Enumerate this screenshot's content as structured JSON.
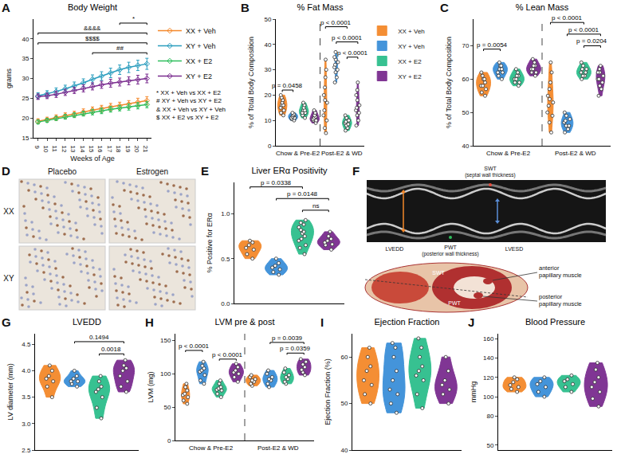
{
  "chart_data": [
    {
      "panel": "A",
      "type": "line",
      "title": "Body Weight",
      "x_label": "Weeks of Age",
      "y_label": "grams",
      "x": [
        9,
        10,
        11,
        12,
        13,
        14,
        15,
        16,
        17,
        18,
        19,
        20,
        21
      ],
      "xlim": [
        8.5,
        21.5
      ],
      "xticks": [
        9,
        10,
        11,
        12,
        13,
        14,
        15,
        16,
        17,
        18,
        19,
        20,
        21
      ],
      "ylim": [
        15,
        45
      ],
      "yticks": [
        15,
        20,
        25,
        30,
        35,
        40
      ],
      "marker": "diamond-open",
      "grid": false,
      "legend": "right",
      "series": [
        {
          "name": "XX + Veh",
          "color": "#F4882A",
          "values": [
            19.2,
            19.6,
            20.1,
            20.6,
            21.0,
            21.5,
            22.0,
            22.4,
            22.8,
            23.1,
            23.5,
            24.0,
            24.4
          ],
          "errors": [
            0.6,
            0.6,
            0.7,
            0.7,
            0.7,
            0.8,
            0.8,
            0.8,
            0.9,
            0.9,
            0.9,
            1.0,
            1.0
          ]
        },
        {
          "name": "XY + Veh",
          "color": "#2A9DBE",
          "values": [
            25.6,
            26.1,
            26.7,
            27.4,
            28.1,
            28.9,
            29.8,
            30.6,
            31.4,
            32.2,
            32.8,
            33.3,
            33.7
          ],
          "errors": [
            0.8,
            0.8,
            0.9,
            0.9,
            1.0,
            1.0,
            1.1,
            1.1,
            1.2,
            1.2,
            1.3,
            1.3,
            1.4
          ]
        },
        {
          "name": "XX + E2",
          "color": "#2DBE5C",
          "values": [
            19.0,
            19.4,
            19.9,
            20.3,
            20.7,
            21.1,
            21.5,
            21.8,
            22.2,
            22.5,
            22.8,
            23.1,
            23.4
          ],
          "errors": [
            0.5,
            0.5,
            0.5,
            0.6,
            0.6,
            0.6,
            0.7,
            0.7,
            0.7,
            0.7,
            0.8,
            0.8,
            0.8
          ]
        },
        {
          "name": "XY + E2",
          "color": "#7A2C8F",
          "values": [
            25.4,
            25.6,
            26.0,
            26.5,
            27.0,
            27.5,
            28.0,
            28.4,
            28.8,
            29.1,
            29.4,
            29.7,
            30.0
          ],
          "errors": [
            0.7,
            0.7,
            0.8,
            0.8,
            0.8,
            0.9,
            0.9,
            0.9,
            1.0,
            1.0,
            1.0,
            1.1,
            1.1
          ]
        }
      ],
      "brackets": [
        {
          "from": 18,
          "to": 21,
          "y": 44,
          "text": "*"
        },
        {
          "from": 9,
          "to": 21,
          "y": 41.5,
          "text": "&&&&"
        },
        {
          "from": 9,
          "to": 21,
          "y": 39,
          "text": "$$$$"
        },
        {
          "from": 15,
          "to": 21,
          "y": 36.5,
          "text": "##"
        }
      ],
      "notes": [
        "* XX + Veh vs XX + E2",
        "# XY + Veh vs XY + E2",
        "& XX + Veh vs XY + Veh",
        "$ XX + E2 vs XY + E2"
      ]
    },
    {
      "panel": "B",
      "type": "violin",
      "title": "% Fat Mass",
      "y_label": "% of Total Body Composition",
      "groups": [
        "Chow & Pre-E2",
        "Post-E2 & WD"
      ],
      "ylim": [
        0,
        50
      ],
      "yticks": [
        0,
        10,
        20,
        30,
        40,
        50
      ],
      "grid": false,
      "tick_labels": "y",
      "legend": "right",
      "series": [
        {
          "name": "XX + Veh",
          "color": "#F4882A",
          "values": [
            [
              12,
              14,
              15,
              16,
              17,
              18,
              19,
              20,
              16,
              13
            ],
            [
              5,
              7,
              10,
              14,
              17,
              20,
              23,
              27,
              30,
              34,
              18,
              12
            ]
          ]
        },
        {
          "name": "XY + Veh",
          "color": "#3A8FD9",
          "values": [
            [
              10,
              11,
              11.5,
              12,
              12.5,
              13,
              11,
              10.5,
              12
            ],
            [
              25,
              27,
              29,
              30,
              31,
              32,
              33,
              34,
              35,
              37
            ]
          ]
        },
        {
          "name": "XX + E2",
          "color": "#2DBE8C",
          "values": [
            [
              11,
              12,
              13,
              14,
              15,
              16,
              17,
              14,
              13
            ],
            [
              6,
              7,
              8,
              8.5,
              9,
              9.5,
              10,
              11,
              12
            ]
          ]
        },
        {
          "name": "XY + E2",
          "color": "#7A2C8F",
          "values": [
            [
              9,
              10,
              10.5,
              11,
              11.5,
              12,
              13,
              14,
              10
            ],
            [
              8,
              10,
              12,
              13,
              14,
              15,
              16,
              18,
              20,
              22,
              25
            ]
          ]
        }
      ],
      "brackets": [
        {
          "from": 0,
          "to": 1,
          "y": 22,
          "text": "p = 0.0458"
        },
        {
          "from": 4,
          "to": 6,
          "y": 47,
          "text": "p < 0.0001"
        },
        {
          "from": 5,
          "to": 7,
          "y": 41,
          "text": "p < 0.0001"
        },
        {
          "from": 6,
          "to": 7,
          "y": 35,
          "text": "p < 0.0001"
        }
      ]
    },
    {
      "panel": "C",
      "type": "violin",
      "title": "% Lean Mass",
      "y_label": "% of Total Body Composition",
      "groups": [
        "Chow & Pre-E2",
        "Post-E2 & WD"
      ],
      "ylim": [
        40,
        78
      ],
      "yticks": [
        40,
        50,
        60,
        70
      ],
      "grid": false,
      "tick_labels": "y",
      "series": [
        {
          "name": "XX + Veh",
          "color": "#F4882A",
          "values": [
            [
              55,
              57,
              58,
              59,
              60,
              61,
              62,
              58,
              56,
              60
            ],
            [
              44,
              47,
              50,
              52,
              54,
              55,
              57,
              59,
              62,
              65,
              53,
              49
            ]
          ]
        },
        {
          "name": "XY + Veh",
          "color": "#3A8FD9",
          "values": [
            [
              60,
              61,
              62,
              63,
              64,
              65,
              63,
              62,
              64
            ],
            [
              44,
              45,
              46,
              47,
              47.5,
              48,
              49,
              50,
              46
            ]
          ]
        },
        {
          "name": "XX + E2",
          "color": "#2DBE8C",
          "values": [
            [
              58,
              59,
              60,
              61,
              62,
              63,
              60,
              59,
              61
            ],
            [
              60,
              61,
              62,
              63,
              64,
              65,
              62,
              63,
              61
            ]
          ]
        },
        {
          "name": "XY + E2",
          "color": "#7A2C8F",
          "values": [
            [
              61,
              62,
              63,
              64,
              65,
              63,
              62,
              64,
              66
            ],
            [
              55,
              57,
              58,
              60,
              61,
              62,
              63,
              64,
              59,
              60,
              62
            ]
          ]
        }
      ],
      "brackets": [
        {
          "from": 0,
          "to": 1,
          "y": 69,
          "text": "p = 0.0054"
        },
        {
          "from": 4,
          "to": 6,
          "y": 77,
          "text": "p < 0.0001"
        },
        {
          "from": 5,
          "to": 7,
          "y": 73.5,
          "text": "p < 0.0001"
        },
        {
          "from": 6,
          "to": 7,
          "y": 70,
          "text": "p = 0.0204"
        }
      ]
    },
    {
      "panel": "E",
      "type": "violin",
      "title": "Liver ERα Positivity",
      "y_label": "% Positive for ERα",
      "ylim": [
        0,
        1.35
      ],
      "yticks": [
        {
          "value": 0,
          "label": "0.0"
        },
        0.5,
        {
          "value": 1,
          "label": "1.0"
        }
      ],
      "grid": false,
      "tick_labels": "y",
      "series": [
        {
          "name": "XX + Veh",
          "color": "#F4882A",
          "values": [
            [
              0.5,
              0.55,
              0.6,
              0.62,
              0.65,
              0.68,
              0.7
            ]
          ]
        },
        {
          "name": "XY + Veh",
          "color": "#3A8FD9",
          "values": [
            [
              0.32,
              0.35,
              0.38,
              0.4,
              0.42,
              0.45,
              0.5
            ]
          ]
        },
        {
          "name": "XX + E2",
          "color": "#2DBE8C",
          "values": [
            [
              0.55,
              0.62,
              0.7,
              0.75,
              0.8,
              0.82,
              0.85,
              0.88,
              0.9,
              0.93,
              0.78,
              0.72,
              0.65
            ]
          ]
        },
        {
          "name": "XY + E2",
          "color": "#7A2C8F",
          "values": [
            [
              0.6,
              0.65,
              0.68,
              0.7,
              0.72,
              0.75,
              0.8,
              0.66
            ]
          ]
        }
      ],
      "brackets": [
        {
          "from": 0,
          "to": 2,
          "y": 1.3,
          "text": "p = 0.0338"
        },
        {
          "from": 1,
          "to": 3,
          "y": 1.17,
          "text": "p = 0.0148"
        },
        {
          "from": 2,
          "to": 3,
          "y": 1.04,
          "text": "ns"
        }
      ]
    },
    {
      "panel": "G",
      "type": "violin",
      "title": "LVEDD",
      "y_label": "LV diameter (mm)",
      "ylim": [
        2.5,
        4.7
      ],
      "yticks": [
        2.5,
        {
          "value": 3,
          "label": "3.0"
        },
        3.5,
        {
          "value": 4,
          "label": "4.0"
        },
        4.5
      ],
      "grid": false,
      "tick_labels": "y",
      "series": [
        {
          "name": "XX + Veh",
          "color": "#F4882A",
          "values": [
            [
              3.5,
              3.7,
              3.8,
              3.9,
              4.0,
              4.1,
              3.85
            ]
          ]
        },
        {
          "name": "XY + Veh",
          "color": "#3A8FD9",
          "values": [
            [
              3.7,
              3.75,
              3.8,
              3.85,
              3.9,
              4.0,
              3.8
            ]
          ]
        },
        {
          "name": "XX + E2",
          "color": "#2DBE8C",
          "values": [
            [
              3.1,
              3.3,
              3.5,
              3.6,
              3.7,
              3.8,
              3.9,
              3.65
            ]
          ]
        },
        {
          "name": "XY + E2",
          "color": "#7A2C8F",
          "values": [
            [
              3.6,
              3.8,
              3.9,
              4.0,
              4.05,
              4.1,
              4.2,
              3.7
            ]
          ]
        }
      ],
      "brackets": [
        {
          "from": 1,
          "to": 3,
          "y": 4.55,
          "text": "0.1494"
        },
        {
          "from": 2,
          "to": 3,
          "y": 4.32,
          "text": "0.0018"
        }
      ]
    },
    {
      "panel": "H",
      "type": "violin",
      "title": "LVM pre & post",
      "y_label": "LVM (mg)",
      "groups": [
        "Chow & Pre-E2",
        "Post-E2 & WD"
      ],
      "ylim": [
        0,
        160
      ],
      "yticks": [
        0,
        50,
        100,
        150
      ],
      "grid": false,
      "tick_labels": "y",
      "series": [
        {
          "name": "XX + Veh",
          "color": "#F4882A",
          "values": [
            [
              55,
              60,
              65,
              70,
              75,
              80,
              85,
              68
            ],
            [
              82,
              85,
              88,
              90,
              92,
              95,
              98
            ]
          ]
        },
        {
          "name": "XY + Veh",
          "color": "#3A8FD9",
          "values": [
            [
              85,
              90,
              98,
              103,
              108,
              112,
              118,
              105
            ],
            [
              80,
              85,
              90,
              92,
              95,
              100,
              105
            ]
          ]
        },
        {
          "name": "XX + E2",
          "color": "#2DBE8C",
          "values": [
            [
              65,
              70,
              75,
              78,
              80,
              85,
              90,
              76
            ],
            [
              85,
              88,
              92,
              95,
              98,
              102,
              108
            ]
          ]
        },
        {
          "name": "XY + E2",
          "color": "#7A2C8F",
          "values": [
            [
              88,
              95,
              100,
              102,
              105,
              110,
              115
            ],
            [
              98,
              102,
              106,
              110,
              114,
              118,
              122
            ]
          ]
        }
      ],
      "brackets": [
        {
          "from": 0,
          "to": 1,
          "y": 135,
          "text": "p < 0.0001"
        },
        {
          "from": 2,
          "to": 3,
          "y": 122,
          "text": "p < 0.0001"
        },
        {
          "from": 5,
          "to": 7,
          "y": 147,
          "text": "p = 0.0039"
        },
        {
          "from": 6,
          "to": 7,
          "y": 131,
          "text": "p = 0.0359"
        }
      ]
    },
    {
      "panel": "I",
      "type": "violin",
      "title": "Ejection Fraction",
      "y_label": "Ejection Fraction (%)",
      "ylim": [
        40,
        65
      ],
      "yticks": [
        40,
        50,
        60
      ],
      "grid": false,
      "tick_labels": "y",
      "series": [
        {
          "name": "XX + Veh",
          "color": "#F4882A",
          "values": [
            [
              50,
              52,
              55,
              57,
              58,
              60,
              62,
              54
            ]
          ]
        },
        {
          "name": "XY + Veh",
          "color": "#3A8FD9",
          "values": [
            [
              48,
              50,
              53,
              55,
              57,
              60,
              63,
              62,
              52
            ]
          ]
        },
        {
          "name": "XX + E2",
          "color": "#2DBE8C",
          "values": [
            [
              49,
              52,
              55,
              57,
              58,
              60,
              62,
              64,
              56
            ]
          ]
        },
        {
          "name": "XY + E2",
          "color": "#7A2C8F",
          "values": [
            [
              50,
              52,
              53,
              54,
              55,
              57,
              60
            ]
          ]
        }
      ]
    },
    {
      "panel": "J",
      "type": "violin",
      "title": "Blood Pressure",
      "y_label": "mmHg",
      "ylim": [
        45,
        165
      ],
      "yticks": [
        50,
        80,
        100,
        120,
        140,
        160
      ],
      "grid": false,
      "tick_labels": "y",
      "series": [
        {
          "name": "XX + Veh",
          "color": "#F4882A",
          "values": [
            [
              105,
              108,
              110,
              112,
              115,
              118,
              120
            ]
          ]
        },
        {
          "name": "XY + Veh",
          "color": "#3A8FD9",
          "values": [
            [
              100,
              105,
              110,
              113,
              116,
              120
            ]
          ]
        },
        {
          "name": "XX + E2",
          "color": "#2DBE8C",
          "values": [
            [
              105,
              110,
              113,
              116,
              118,
              122
            ]
          ]
        },
        {
          "name": "XY + E2",
          "color": "#7A2C8F",
          "values": [
            [
              90,
              98,
              105,
              110,
              115,
              120,
              128,
              135
            ]
          ]
        }
      ]
    }
  ],
  "images": [
    {
      "panel": "D",
      "columns": [
        "Placebo",
        "Estrogen"
      ],
      "rows": [
        "XX",
        "XY"
      ]
    },
    {
      "panel": "F",
      "echo_labels": {
        "swt": "SWT",
        "swt_full": "(septal wall thickness)",
        "lvedd": "LVEDD",
        "pwt": "PWT",
        "pwt_full": "(posterior wall thickness)",
        "lvesd": "LVESD"
      },
      "diagram_labels": {
        "swt": "SWT",
        "pwt": "PWT",
        "anterior": "anterior papillary muscle",
        "posterior": "posterior papillary muscle"
      }
    }
  ]
}
